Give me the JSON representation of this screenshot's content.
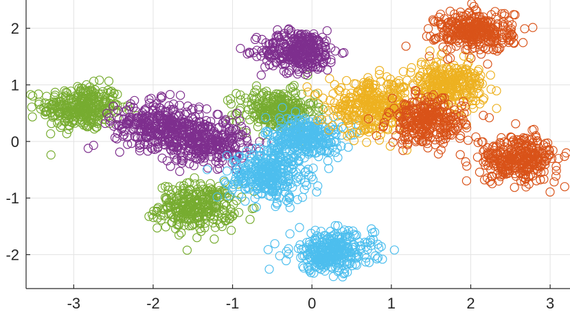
{
  "chart_data": {
    "type": "scatter",
    "title": "",
    "xlabel": "",
    "ylabel": "",
    "xlim": [
      -3.6,
      3.25
    ],
    "ylim": [
      -2.6,
      2.5
    ],
    "xticks": [
      -3,
      -2,
      -1,
      0,
      1,
      2,
      3
    ],
    "xtick_labels": [
      "-3",
      "-2",
      "-1",
      "0",
      "1",
      "2",
      "3"
    ],
    "yticks": [
      -2,
      -1,
      0,
      1,
      2
    ],
    "ytick_labels": [
      "-2",
      "-1",
      "0",
      "1",
      "2"
    ],
    "grid": true,
    "legend": "none",
    "marker": "open-circle",
    "colors": {
      "green": "#77AC30",
      "purple": "#7E2F8E",
      "blue": "#4DBEEE",
      "yellow": "#EDB120",
      "orange": "#D95319"
    },
    "clusters": [
      {
        "color": "green",
        "center": [
          -2.9,
          0.6
        ],
        "spread": [
          0.25,
          0.2
        ],
        "points": 320
      },
      {
        "color": "green",
        "center": [
          -1.45,
          -1.15
        ],
        "spread": [
          0.24,
          0.2
        ],
        "points": 320
      },
      {
        "color": "green",
        "center": [
          -0.45,
          0.55
        ],
        "spread": [
          0.24,
          0.18
        ],
        "points": 260
      },
      {
        "color": "purple",
        "center": [
          -0.15,
          1.6
        ],
        "spread": [
          0.24,
          0.18
        ],
        "points": 320
      },
      {
        "color": "purple",
        "center": [
          -1.95,
          0.3
        ],
        "spread": [
          0.27,
          0.2
        ],
        "points": 300
      },
      {
        "color": "purple",
        "center": [
          -1.35,
          0.0
        ],
        "spread": [
          0.27,
          0.2
        ],
        "points": 300
      },
      {
        "color": "blue",
        "center": [
          -0.1,
          0.05
        ],
        "spread": [
          0.24,
          0.2
        ],
        "points": 320
      },
      {
        "color": "blue",
        "center": [
          -0.55,
          -0.6
        ],
        "spread": [
          0.24,
          0.22
        ],
        "points": 320
      },
      {
        "color": "blue",
        "center": [
          0.25,
          -1.95
        ],
        "spread": [
          0.26,
          0.18
        ],
        "points": 320
      },
      {
        "color": "yellow",
        "center": [
          0.75,
          0.6
        ],
        "spread": [
          0.27,
          0.22
        ],
        "points": 330
      },
      {
        "color": "yellow",
        "center": [
          1.7,
          1.0
        ],
        "spread": [
          0.24,
          0.2
        ],
        "points": 300
      },
      {
        "color": "orange",
        "center": [
          2.05,
          1.95
        ],
        "spread": [
          0.24,
          0.18
        ],
        "points": 320
      },
      {
        "color": "orange",
        "center": [
          1.45,
          0.35
        ],
        "spread": [
          0.24,
          0.2
        ],
        "points": 300
      },
      {
        "color": "orange",
        "center": [
          2.6,
          -0.3
        ],
        "spread": [
          0.25,
          0.2
        ],
        "points": 320
      }
    ]
  }
}
